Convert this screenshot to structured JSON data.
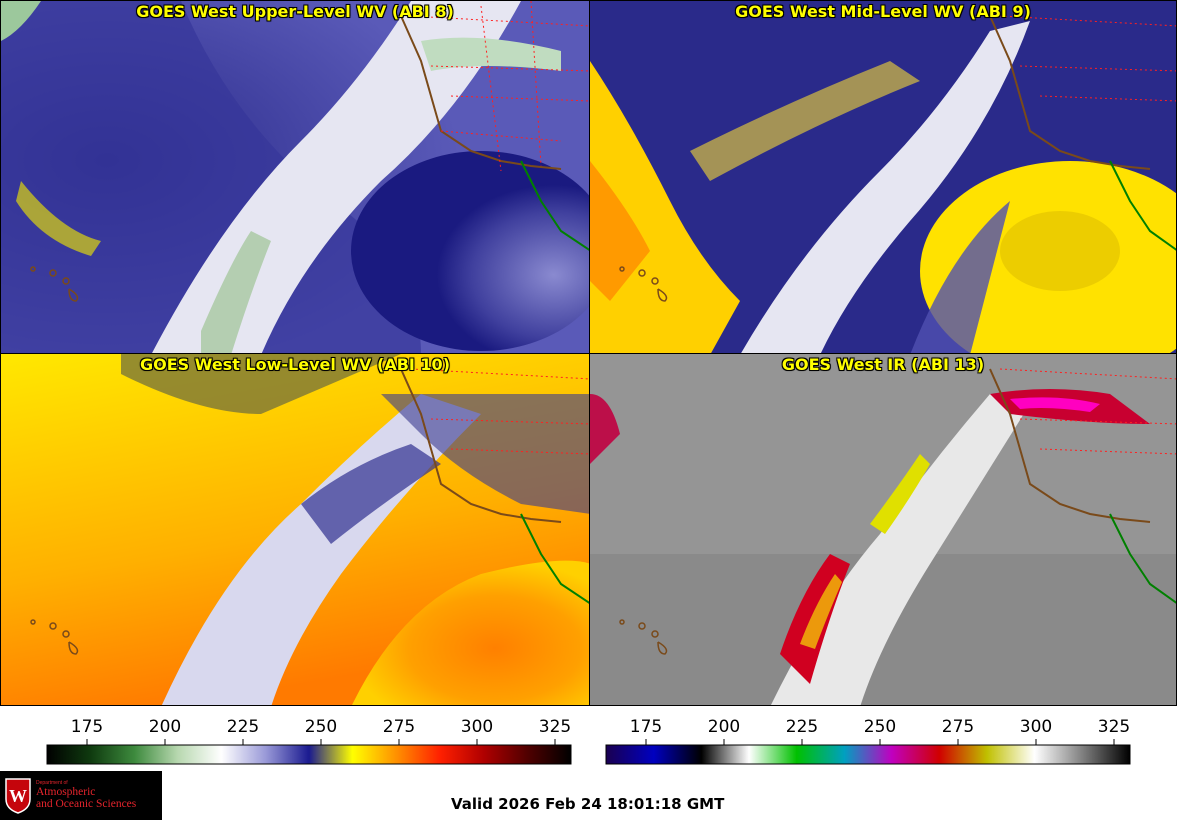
{
  "panels": [
    {
      "title": "GOES West Upper-Level WV (ABI 8)"
    },
    {
      "title": "GOES West Mid-Level WV (ABI 9)"
    },
    {
      "title": "GOES West Low-Level WV (ABI 10)"
    },
    {
      "title": "GOES West IR (ABI 13)"
    }
  ],
  "colorbars": [
    {
      "name": "water-vapor",
      "ticks": [
        "175",
        "200",
        "225",
        "250",
        "275",
        "300",
        "325"
      ],
      "colors": [
        "#000000",
        "#0f3a0f",
        "#3d8a3d",
        "#b8d8b0",
        "#ffffff",
        "#9a9ad8",
        "#1a1a90",
        "#ffff00",
        "#ff9000",
        "#ff2000",
        "#b00000",
        "#500000",
        "#000000"
      ]
    },
    {
      "name": "infrared",
      "ticks": [
        "175",
        "200",
        "225",
        "250",
        "275",
        "300",
        "325"
      ],
      "colors": [
        "#1a0050",
        "#0000c0",
        "#000000",
        "#ffffff",
        "#00c000",
        "#00a0c0",
        "#c000c0",
        "#d00000",
        "#c0c000",
        "#ffffff",
        "#808080",
        "#000000"
      ]
    }
  ],
  "logo": {
    "small_text": "Department of",
    "line1": "Atmospheric",
    "line2": "and Oceanic Sciences",
    "shield_letter": "W"
  },
  "valid_time": "Valid 2026 Feb 24 18:01:18 GMT"
}
